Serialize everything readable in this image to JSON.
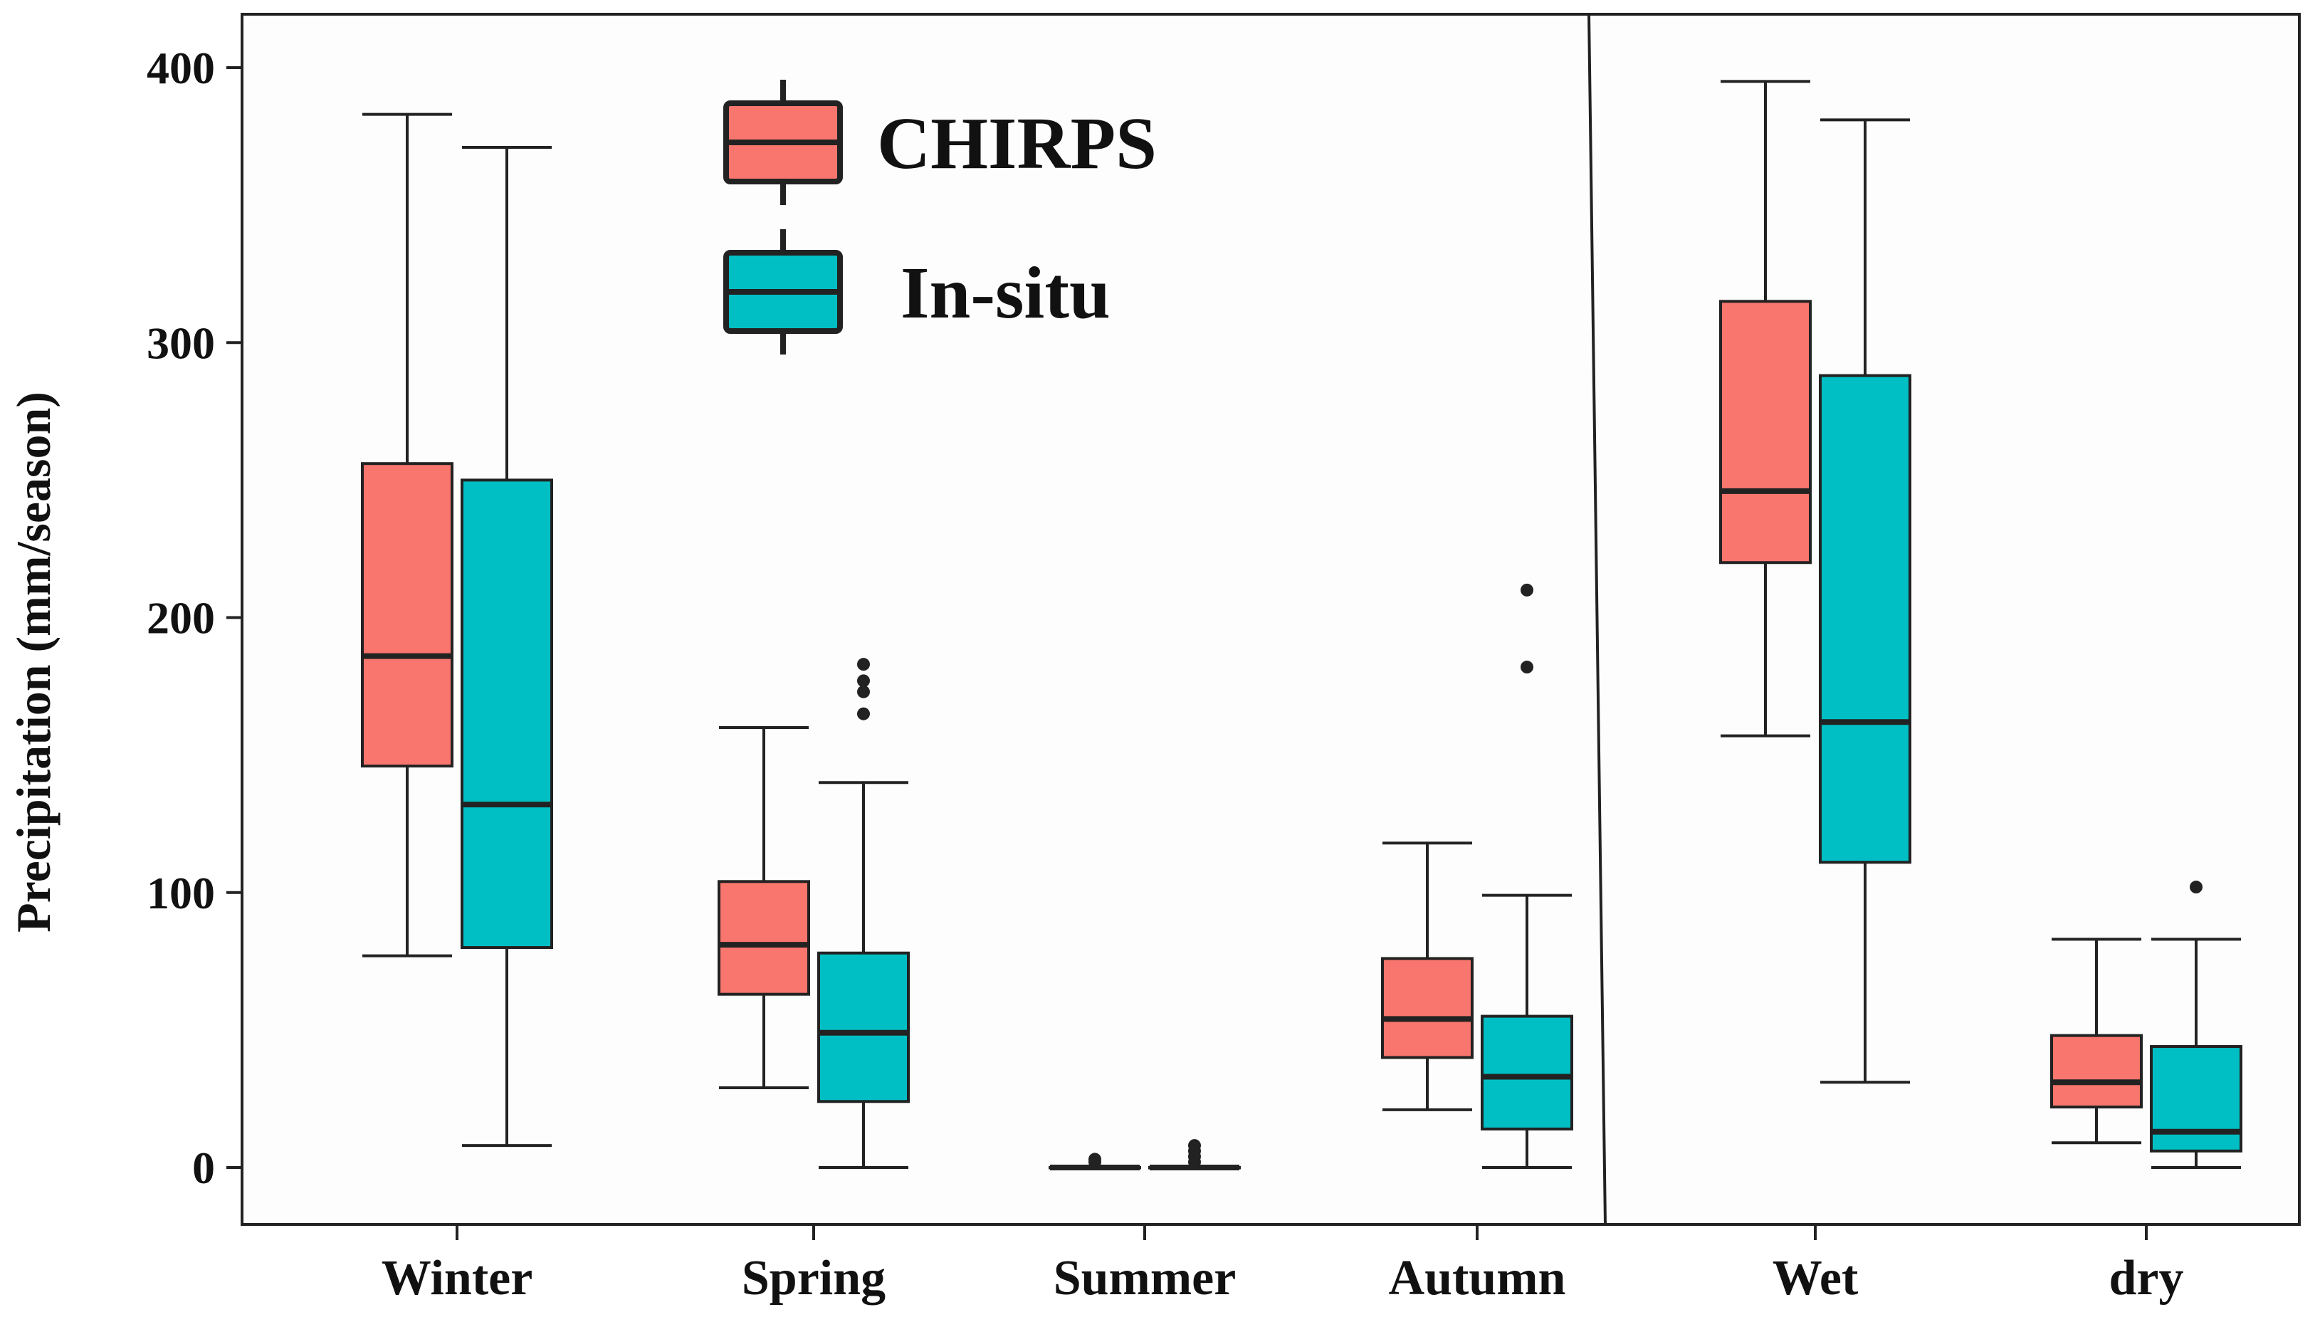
{
  "chart_data": {
    "type": "boxplot",
    "title": "",
    "xlabel": "",
    "ylabel": "Precipitation (mm/season)",
    "ylim": [
      -20,
      420
    ],
    "yticks": [
      0,
      100,
      200,
      300,
      400
    ],
    "categories": [
      "Winter",
      "Spring",
      "Summer",
      "Autumn",
      "Wet",
      "dry"
    ],
    "divider_after": "Autumn",
    "legend_position": "top-left",
    "series": [
      {
        "name": "CHIRPS",
        "color": "#F8766D",
        "boxes": [
          {
            "category": "Winter",
            "min": 77,
            "q1": 146,
            "median": 186,
            "q3": 256,
            "max": 383,
            "outliers": []
          },
          {
            "category": "Spring",
            "min": 29,
            "q1": 63,
            "median": 81,
            "q3": 104,
            "max": 160,
            "outliers": []
          },
          {
            "category": "Summer",
            "min": 0,
            "q1": 0,
            "median": 0,
            "q3": 0,
            "max": 0,
            "outliers": [
              2,
              3
            ]
          },
          {
            "category": "Autumn",
            "min": 21,
            "q1": 40,
            "median": 54,
            "q3": 76,
            "max": 118,
            "outliers": []
          },
          {
            "category": "Wet",
            "min": 157,
            "q1": 220,
            "median": 246,
            "q3": 315,
            "max": 395,
            "outliers": []
          },
          {
            "category": "dry",
            "min": 9,
            "q1": 22,
            "median": 31,
            "q3": 48,
            "max": 83,
            "outliers": []
          }
        ]
      },
      {
        "name": "In-situ",
        "color": "#00BFC4",
        "boxes": [
          {
            "category": "Winter",
            "min": 8,
            "q1": 80,
            "median": 132,
            "q3": 250,
            "max": 371,
            "outliers": []
          },
          {
            "category": "Spring",
            "min": 0,
            "q1": 24,
            "median": 49,
            "q3": 78,
            "max": 140,
            "outliers": [
              165,
              173,
              177,
              183
            ]
          },
          {
            "category": "Summer",
            "min": 0,
            "q1": 0,
            "median": 0,
            "q3": 0,
            "max": 0,
            "outliers": [
              2,
              4,
              6,
              8
            ]
          },
          {
            "category": "Autumn",
            "min": 0,
            "q1": 14,
            "median": 33,
            "q3": 55,
            "max": 99,
            "outliers": [
              182,
              210
            ]
          },
          {
            "category": "Wet",
            "min": 31,
            "q1": 111,
            "median": 162,
            "q3": 288,
            "max": 381,
            "outliers": []
          },
          {
            "category": "dry",
            "min": 0,
            "q1": 6,
            "median": 13,
            "q3": 44,
            "max": 83,
            "outliers": [
              102
            ]
          }
        ]
      }
    ]
  }
}
